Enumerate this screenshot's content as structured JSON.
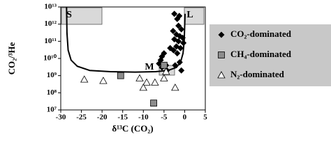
{
  "chart_data": {
    "type": "scatter",
    "x_label": "δ¹³C (CO₂)",
    "y_label": "CO₂/³He",
    "yscale": "log",
    "xlim": [
      -30,
      5
    ],
    "xticks": [
      -30,
      -25,
      -20,
      -15,
      -10,
      -5,
      0,
      5
    ],
    "ylim": [
      10000000.0,
      10000000000000.0
    ],
    "yticks": [
      {
        "value": 10000000.0,
        "label": "10⁷"
      },
      {
        "value": 100000000.0,
        "label": "10⁸"
      },
      {
        "value": 1000000000.0,
        "label": "10⁹"
      },
      {
        "value": 10000000000.0,
        "label": "10¹⁰"
      },
      {
        "value": 100000000000.0,
        "label": "10¹¹"
      },
      {
        "value": 1000000000000.0,
        "label": "10¹²"
      },
      {
        "value": 10000000000000.0,
        "label": "10¹³"
      }
    ],
    "annotations": [
      "S",
      "L",
      "M"
    ],
    "mixing_curve": {
      "color": "#000000",
      "x": [
        -28.6,
        -28.5,
        -28.2,
        -27.5,
        -26,
        -23,
        -18,
        -12,
        -7,
        -4,
        -2,
        -1,
        -0.4,
        -0.1,
        0.1
      ],
      "y": [
        10000000000000.0,
        300000000000.0,
        30000000000.0,
        8000000000.0,
        3500000000.0,
        2000000000.0,
        1700000000.0,
        1600000000.0,
        1700000000.0,
        2000000000.0,
        3000000000.0,
        6000000000.0,
        20000000000.0,
        100000000000.0,
        4000000000000.0
      ]
    },
    "series": [
      {
        "name": "CO₂-dominated",
        "marker": "diamond",
        "color": "#000000",
        "x": [
          -2.5,
          -1.8,
          -1.3,
          -1.5,
          -0.8,
          -2.8,
          -2.0,
          -1.2,
          -0.5,
          -2.5,
          -1.5,
          -0.3,
          -2.0,
          -1.0,
          -2.7,
          -3.5,
          -1.8,
          -5.0,
          -5.5,
          -5.8,
          -6.2,
          -4.5,
          -5.5,
          -2.3,
          -1.2,
          -4.3,
          -0.8
        ],
        "values": [
          4000000000000.0,
          2000000000000.0,
          3000000000000.0,
          800000000000.0,
          500000000000.0,
          400000000000.0,
          250000000000.0,
          200000000000.0,
          160000000000.0,
          130000000000.0,
          100000000000.0,
          80000000000.0,
          50000000000.0,
          40000000000.0,
          30000000000.0,
          40000000000.0,
          20000000000.0,
          20000000000.0,
          13000000000.0,
          8000000000.0,
          5000000000.0,
          4000000000.0,
          3000000000.0,
          4000000000.0,
          6000000000.0,
          2000000000.0,
          2000000000.0
        ]
      },
      {
        "name": "CH₄-dominated",
        "marker": "square",
        "color": "#8c8c8c",
        "x": [
          -15.5,
          -5.0,
          -7.5
        ],
        "values": [
          1000000000.0,
          4000000000.0,
          25000000.0
        ]
      },
      {
        "name": "N₂-dominated",
        "marker": "triangle",
        "color": "#ffffff",
        "x": [
          -24.3,
          -19.7,
          -10.9,
          -9.2,
          -7.2,
          -10,
          -2.3,
          -5,
          -4.5
        ],
        "values": [
          600000000.0,
          500000000.0,
          700000000.0,
          400000000.0,
          400000000.0,
          200000000.0,
          200000000.0,
          700000000.0,
          1700000000.0
        ]
      }
    ],
    "legend": "right"
  }
}
